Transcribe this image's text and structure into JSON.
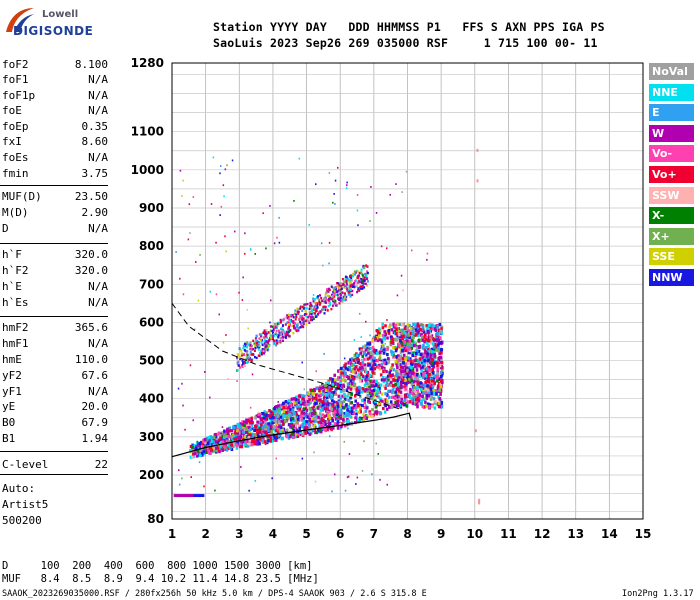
{
  "logo": {
    "brand_top": "Lowell",
    "brand_main": "DIGISONDE"
  },
  "header": {
    "line1": "Station YYYY DAY   DDD HHMMSS P1   FFS S AXN PPS IGA PS",
    "line2": "SaoLuis 2023 Sep26 269 035000 RSF     1 715 100 00- 11"
  },
  "params": [
    {
      "name": "foF2",
      "value": "8.100"
    },
    {
      "name": "foF1",
      "value": "N/A"
    },
    {
      "name": "foF1p",
      "value": "N/A"
    },
    {
      "name": "foE",
      "value": "N/A"
    },
    {
      "name": "foEp",
      "value": "0.35"
    },
    {
      "name": "fxI",
      "value": "8.60"
    },
    {
      "name": "foEs",
      "value": "N/A"
    },
    {
      "name": "fmin",
      "value": "3.75"
    },
    {
      "name": "MUF(D)",
      "value": "23.50"
    },
    {
      "name": "M(D)",
      "value": "2.90"
    },
    {
      "name": "D",
      "value": "N/A"
    },
    {
      "name": "h`F",
      "value": "320.0"
    },
    {
      "name": "h`F2",
      "value": "320.0"
    },
    {
      "name": "h`E",
      "value": "N/A"
    },
    {
      "name": "h`Es",
      "value": "N/A"
    },
    {
      "name": "hmF2",
      "value": "365.6"
    },
    {
      "name": "hmF1",
      "value": "N/A"
    },
    {
      "name": "hmE",
      "value": "110.0"
    },
    {
      "name": "yF2",
      "value": "67.6"
    },
    {
      "name": "yF1",
      "value": "N/A"
    },
    {
      "name": "yE",
      "value": "20.0"
    },
    {
      "name": "B0",
      "value": "67.9"
    },
    {
      "name": "B1",
      "value": "1.94"
    },
    {
      "name": "C-level",
      "value": "22"
    }
  ],
  "auto": {
    "line1": "Auto:",
    "line2": "Artist5",
    "line3": "500200"
  },
  "legend": [
    {
      "label": "NoVal",
      "color": "#a0a0a0"
    },
    {
      "label": "NNE",
      "color": "#00e0f0"
    },
    {
      "label": "E",
      "color": "#30a0f0"
    },
    {
      "label": "W",
      "color": "#b000b0"
    },
    {
      "label": "Vo-",
      "color": "#ff40b0"
    },
    {
      "label": "Vo+",
      "color": "#f00030"
    },
    {
      "label": "SSW",
      "color": "#ffb0b0"
    },
    {
      "label": "X-",
      "color": "#008000"
    },
    {
      "label": "X+",
      "color": "#70b050"
    },
    {
      "label": "SSE",
      "color": "#d0d000"
    },
    {
      "label": "NNW",
      "color": "#1818e0"
    }
  ],
  "footer": {
    "d_label": "D",
    "d_values": "  100  200  400  600  800 1000 1500 3000 [km]",
    "muf_label": "MUF",
    "muf_values": "  8.4  8.5  8.9  9.4 10.2 11.4 14.8 23.5 [MHz]",
    "file_info": "SAAOK_2023269035000.RSF / 280fx256h 50 kHz 5.0 km / DPS-4 SAAOK 903 / 2.6 S 315.8 E",
    "version": "Ion2Png 1.3.17"
  },
  "chart_data": {
    "type": "scatter",
    "xlim": [
      1,
      15
    ],
    "ylim": [
      80,
      1280
    ],
    "x_ticks": [
      1,
      2,
      3,
      4,
      5,
      6,
      7,
      8,
      9,
      10,
      11,
      12,
      13,
      14,
      15
    ],
    "y_ticks": [
      80,
      200,
      300,
      400,
      500,
      600,
      700,
      800,
      900,
      1000,
      1100,
      1280
    ],
    "grid": true,
    "traces": [
      {
        "name": "F trace (1st hop)",
        "x_range": [
          1.5,
          9.0
        ],
        "y_range": [
          250,
          600
        ]
      },
      {
        "name": "F trace (2nd hop)",
        "x_range": [
          2.9,
          6.8
        ],
        "y_range": [
          500,
          780
        ]
      },
      {
        "name": "E echo",
        "x_range": [
          1.05,
          2.0
        ],
        "y_range": [
          145,
          150
        ]
      }
    ],
    "profile_curve": [
      [
        1.0,
        248
      ],
      [
        2.0,
        272
      ],
      [
        3.0,
        290
      ],
      [
        4.0,
        305
      ],
      [
        5.0,
        318
      ],
      [
        6.0,
        330
      ],
      [
        7.0,
        343
      ],
      [
        7.6,
        352
      ],
      [
        8.05,
        362
      ],
      [
        8.1,
        345
      ]
    ],
    "muf_curve": [
      [
        1.0,
        650
      ],
      [
        1.5,
        590
      ],
      [
        2.5,
        525
      ],
      [
        3.5,
        490
      ],
      [
        4.5,
        465
      ],
      [
        5.5,
        440
      ],
      [
        6.5,
        410
      ],
      [
        7.2,
        390
      ],
      [
        7.8,
        372
      ]
    ]
  }
}
